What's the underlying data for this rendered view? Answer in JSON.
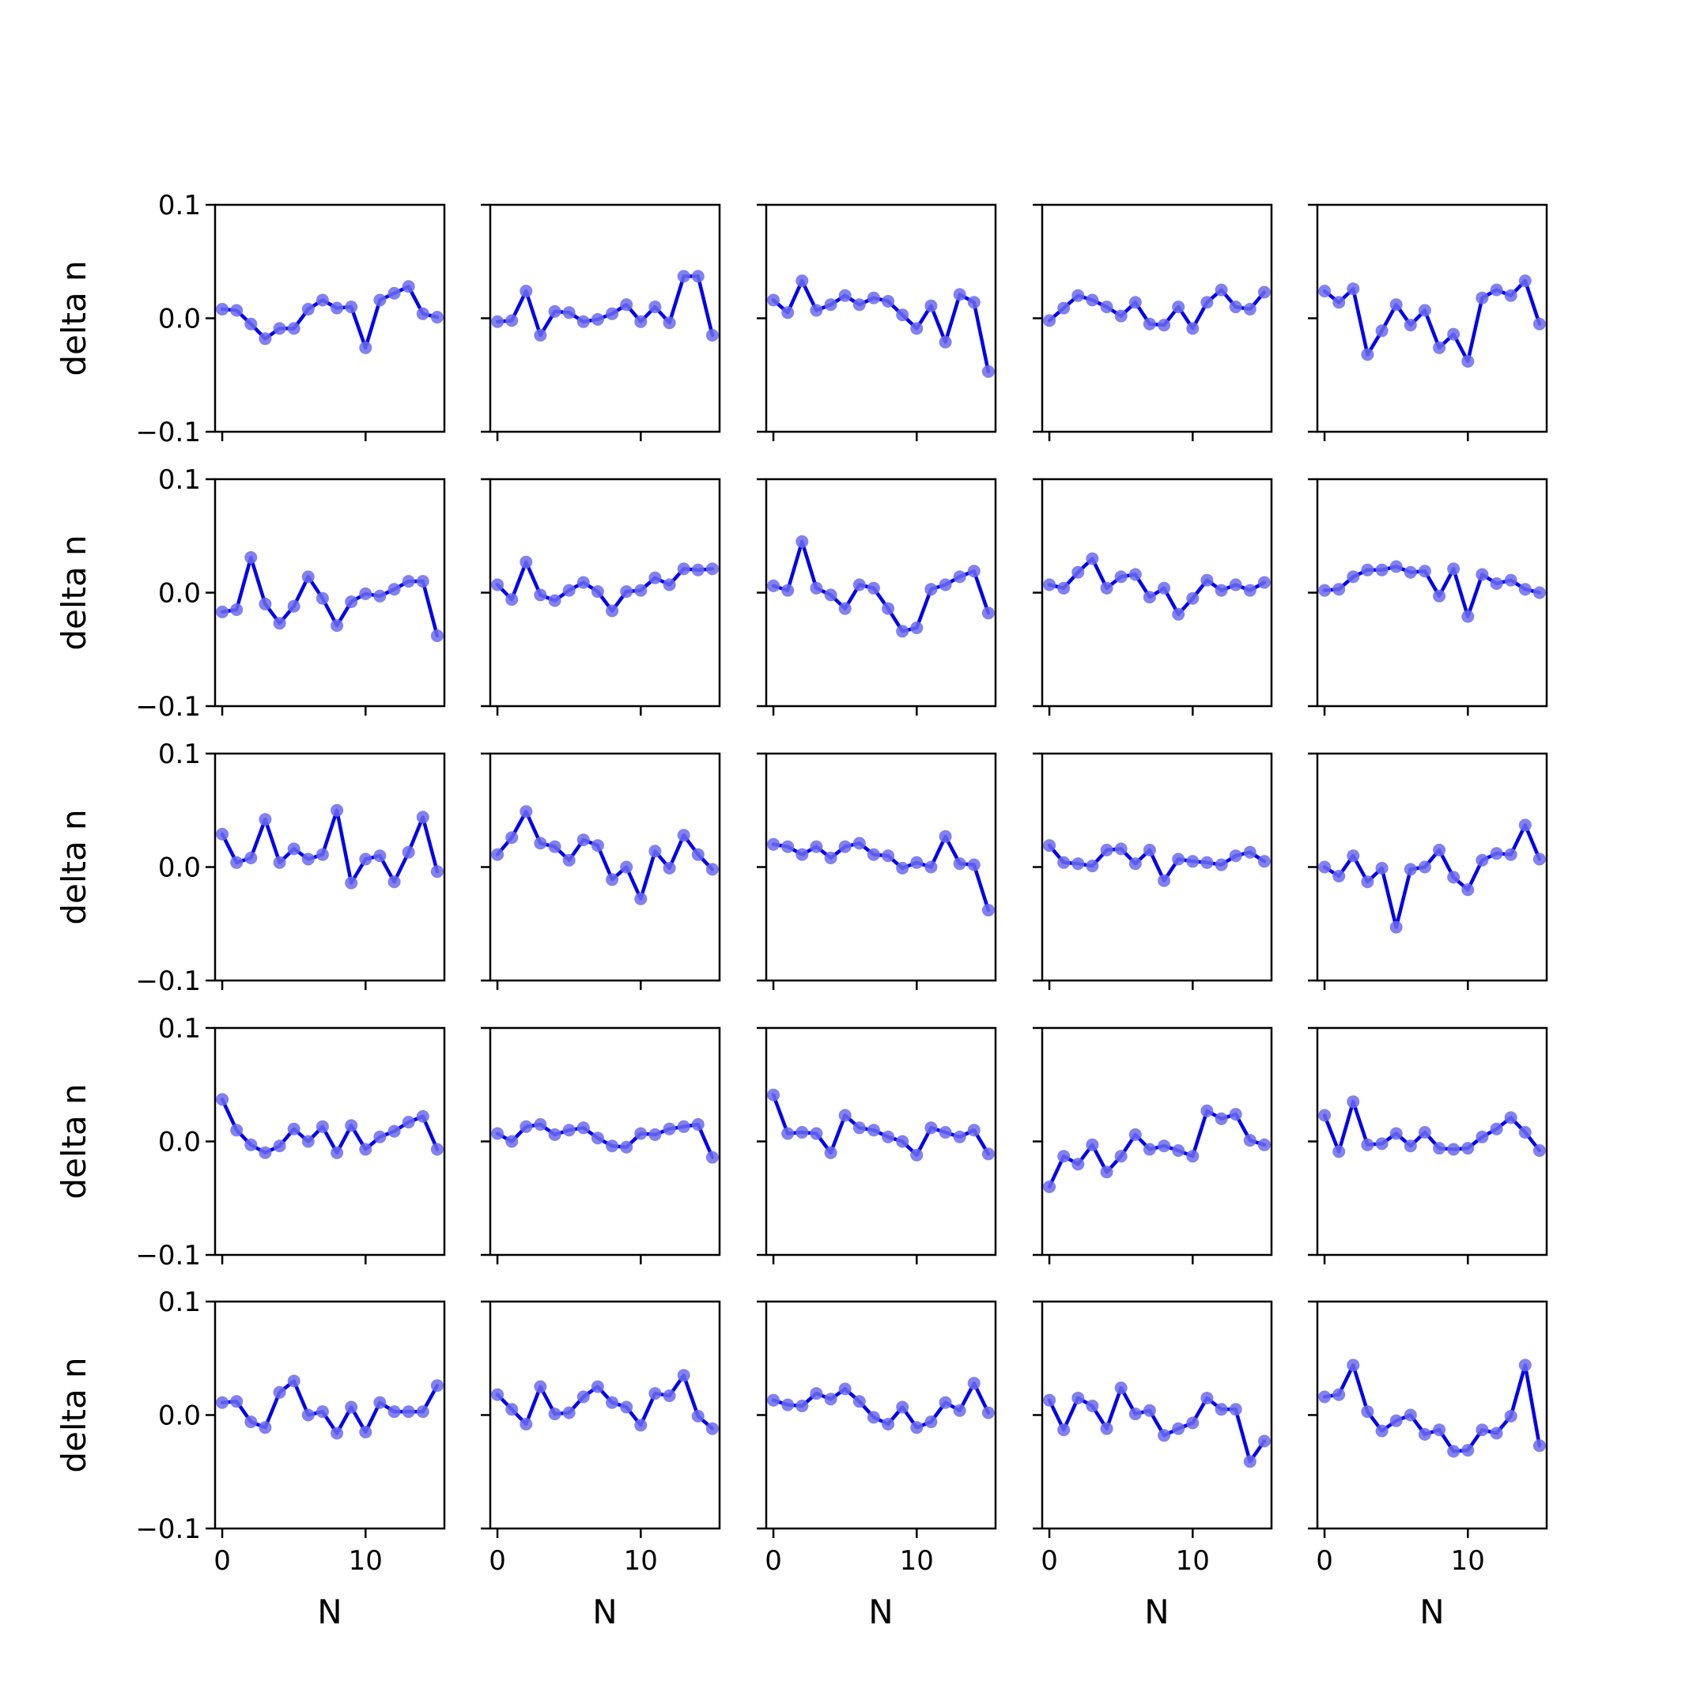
{
  "figure": {
    "rows": 5,
    "cols": 5,
    "line_color": "#0000ee",
    "marker_color": "#6b6bee",
    "axis_color": "#000000"
  },
  "chart_data": {
    "type": "line",
    "xlabel": "N",
    "ylabel": "delta n",
    "ylim": [
      -0.1,
      0.1
    ],
    "yticks": [
      -0.1,
      0.0,
      0.1
    ],
    "ytick_labels": [
      "−0.1",
      "0.0",
      "0.1"
    ],
    "xlim": [
      -0.5,
      15.5
    ],
    "xticks": [
      0,
      10
    ],
    "xtick_labels": [
      "0",
      "10"
    ],
    "x": [
      0,
      1,
      2,
      3,
      4,
      5,
      6,
      7,
      8,
      9,
      10,
      11,
      12,
      13,
      14,
      15
    ],
    "grid": false,
    "panels": [
      [
        0.008,
        0.007,
        -0.005,
        -0.018,
        -0.009,
        -0.009,
        0.008,
        0.016,
        0.009,
        0.01,
        -0.026,
        0.016,
        0.022,
        0.028,
        0.004,
        0.001
      ],
      [
        -0.003,
        -0.002,
        0.024,
        -0.015,
        0.006,
        0.005,
        -0.003,
        -0.001,
        0.004,
        0.012,
        -0.003,
        0.01,
        -0.004,
        0.037,
        0.037,
        -0.015
      ],
      [
        0.016,
        0.005,
        0.033,
        0.007,
        0.012,
        0.02,
        0.012,
        0.018,
        0.015,
        0.003,
        -0.009,
        0.011,
        -0.021,
        0.021,
        0.014,
        -0.047
      ],
      [
        -0.002,
        0.009,
        0.02,
        0.016,
        0.01,
        0.002,
        0.014,
        -0.005,
        -0.006,
        0.01,
        -0.009,
        0.014,
        0.025,
        0.01,
        0.008,
        0.023
      ],
      [
        0.024,
        0.014,
        0.026,
        -0.032,
        -0.011,
        0.012,
        -0.006,
        0.007,
        -0.026,
        -0.014,
        -0.038,
        0.018,
        0.025,
        0.02,
        0.033,
        -0.005
      ],
      [
        -0.017,
        -0.015,
        0.031,
        -0.01,
        -0.027,
        -0.012,
        0.014,
        -0.005,
        -0.029,
        -0.008,
        -0.001,
        -0.003,
        0.003,
        0.01,
        0.01,
        -0.038
      ],
      [
        0.007,
        -0.006,
        0.027,
        -0.002,
        -0.007,
        0.002,
        0.009,
        0.001,
        -0.016,
        0.001,
        0.002,
        0.013,
        0.007,
        0.021,
        0.02,
        0.021
      ],
      [
        0.006,
        0.002,
        0.045,
        0.004,
        -0.002,
        -0.014,
        0.007,
        0.004,
        -0.014,
        -0.034,
        -0.031,
        0.003,
        0.007,
        0.014,
        0.019,
        -0.018
      ],
      [
        0.007,
        0.004,
        0.018,
        0.03,
        0.004,
        0.014,
        0.016,
        -0.004,
        0.004,
        -0.019,
        -0.005,
        0.011,
        0.002,
        0.007,
        0.002,
        0.009
      ],
      [
        0.002,
        0.003,
        0.014,
        0.02,
        0.02,
        0.023,
        0.018,
        0.019,
        -0.003,
        0.021,
        -0.021,
        0.016,
        0.008,
        0.011,
        0.003,
        0.0
      ]
    ]
  }
}
